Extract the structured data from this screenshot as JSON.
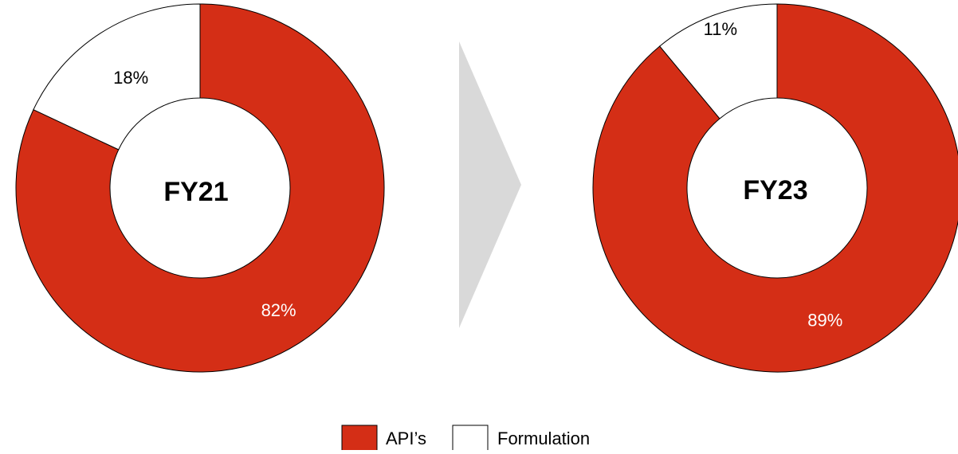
{
  "chart_data": [
    {
      "type": "pie",
      "center_label": "FY21",
      "series": [
        {
          "name": "API’s",
          "value": 82,
          "label": "82%"
        },
        {
          "name": "Formulation",
          "value": 18,
          "label": "18%"
        }
      ]
    },
    {
      "type": "pie",
      "center_label": "FY23",
      "series": [
        {
          "name": "API’s",
          "value": 89,
          "label": "89%"
        },
        {
          "name": "Formulation",
          "value": 11,
          "label": "11%"
        }
      ]
    }
  ],
  "legend": {
    "items": [
      {
        "label": "API’s",
        "color": "#d42e16"
      },
      {
        "label": "Formulation",
        "color": "#ffffff"
      }
    ]
  },
  "colors": {
    "api": "#d42e16",
    "formulation": "#ffffff",
    "arrow": "#d9d9d9",
    "stroke": "#000000"
  }
}
